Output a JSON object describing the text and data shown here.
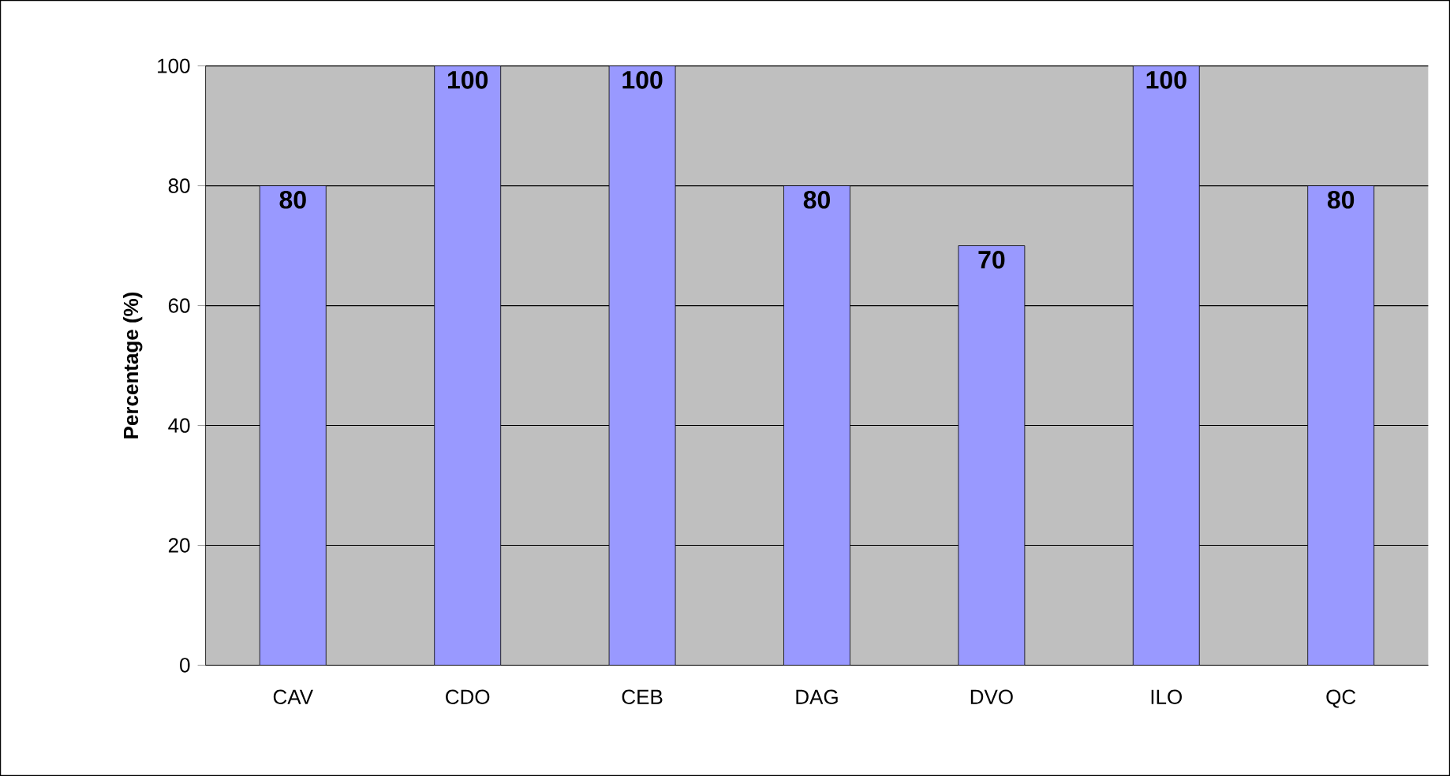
{
  "chart_data": {
    "type": "bar",
    "ylabel": "Percentage (%)",
    "categories": [
      "CAV",
      "CDO",
      "CEB",
      "DAG",
      "DVO",
      "ILO",
      "QC"
    ],
    "values": [
      80,
      100,
      100,
      80,
      70,
      100,
      80
    ],
    "color": "#9999ff",
    "ylim": [
      0,
      100
    ],
    "yticks": [
      0,
      20,
      40,
      60,
      80,
      100
    ],
    "grid": "y",
    "data_labels": true
  }
}
